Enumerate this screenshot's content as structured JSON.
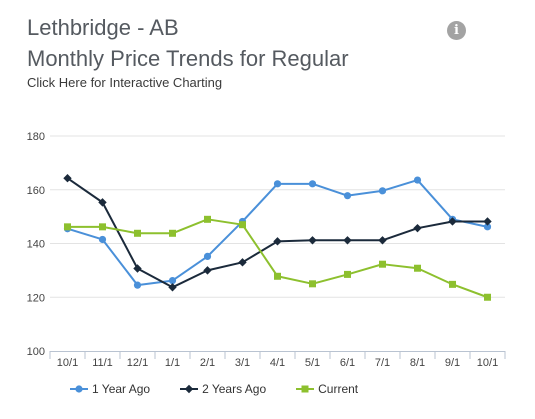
{
  "header": {
    "title_line1": "Lethbridge - AB",
    "title_line2": "Monthly Price Trends for Regular",
    "link_text": "Click Here for Interactive Charting",
    "info_icon_glyph": "i"
  },
  "icons": {
    "info": "info-icon"
  },
  "chart_data": {
    "type": "line",
    "title": "Monthly Price Trends for Regular",
    "xlabel": "",
    "ylabel": "",
    "categories": [
      "10/1",
      "11/1",
      "12/1",
      "1/1",
      "2/1",
      "3/1",
      "4/1",
      "5/1",
      "6/1",
      "7/1",
      "8/1",
      "9/1",
      "10/1"
    ],
    "ylim": [
      100,
      180
    ],
    "yticks": [
      100,
      120,
      140,
      160,
      180
    ],
    "grid": true,
    "legend_position": "bottom",
    "series": [
      {
        "name": "1 Year Ago",
        "color": "#4a90d9",
        "marker": "circle",
        "values": [
          145.5,
          141.5,
          124.5,
          126.2,
          135.2,
          148.2,
          162.2,
          162.2,
          157.8,
          159.6,
          163.6,
          149.0,
          146.2
        ]
      },
      {
        "name": "2 Years Ago",
        "color": "#1b2a3b",
        "marker": "diamond",
        "values": [
          164.3,
          155.3,
          130.7,
          123.7,
          130.0,
          133.0,
          140.8,
          141.2,
          141.2,
          141.2,
          145.7,
          148.2,
          148.2
        ]
      },
      {
        "name": "Current",
        "color": "#8dc02e",
        "marker": "square",
        "values": [
          146.2,
          146.2,
          143.8,
          143.8,
          149.0,
          147.0,
          127.8,
          125.0,
          128.5,
          132.3,
          130.8,
          124.8,
          120.0
        ]
      }
    ]
  }
}
